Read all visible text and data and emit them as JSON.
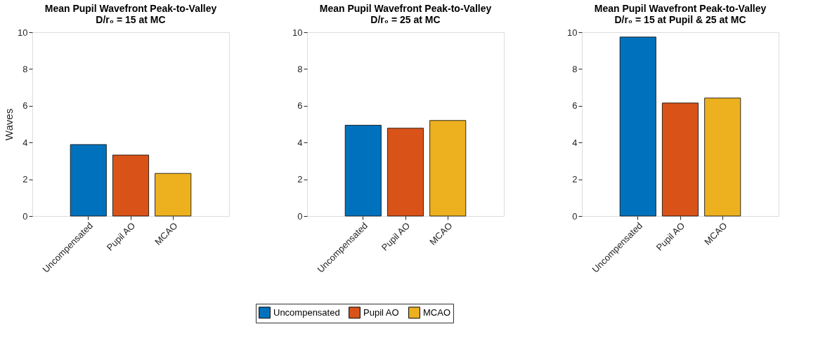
{
  "chart_data": [
    {
      "type": "bar",
      "title": "Mean Pupil Wavefront Peak-to-Valley\nD/r₀ = 15 at MC",
      "ylabel": "Waves",
      "categories": [
        "Uncompensated",
        "Pupil AO",
        "MCAO"
      ],
      "series": [
        {
          "name": "Uncompensated",
          "color": "#0072bd",
          "values": [
            3.89,
            null,
            null
          ]
        },
        {
          "name": "Pupil AO",
          "color": "#d95319",
          "values": [
            null,
            3.32,
            null
          ]
        },
        {
          "name": "MCAO",
          "color": "#edb120",
          "values": [
            null,
            null,
            2.32
          ]
        }
      ],
      "ylim": [
        0,
        10
      ],
      "yticks": [
        0,
        2,
        4,
        6,
        8,
        10
      ],
      "grid": false,
      "legend": "bottom"
    },
    {
      "type": "bar",
      "title": "Mean Pupil Wavefront Peak-to-Valley\nD/r₀ = 25 at MC",
      "categories": [
        "Uncompensated",
        "Pupil AO",
        "MCAO"
      ],
      "series": [
        {
          "name": "Uncompensated",
          "color": "#0072bd",
          "values": [
            4.94,
            null,
            null
          ]
        },
        {
          "name": "Pupil AO",
          "color": "#d95319",
          "values": [
            null,
            4.78,
            null
          ]
        },
        {
          "name": "MCAO",
          "color": "#edb120",
          "values": [
            null,
            null,
            5.2
          ]
        }
      ],
      "ylim": [
        0,
        10
      ],
      "yticks": [
        0,
        2,
        4,
        6,
        8,
        10
      ],
      "grid": false,
      "legend": "bottom"
    },
    {
      "type": "bar",
      "title": "Mean Pupil Wavefront Peak-to-Valley\nD/r₀ = 15 at Pupil & 25 at MC",
      "categories": [
        "Uncompensated",
        "Pupil AO",
        "MCAO"
      ],
      "series": [
        {
          "name": "Uncompensated",
          "color": "#0072bd",
          "values": [
            9.74,
            null,
            null
          ]
        },
        {
          "name": "Pupil AO",
          "color": "#d95319",
          "values": [
            null,
            6.15,
            null
          ]
        },
        {
          "name": "MCAO",
          "color": "#edb120",
          "values": [
            null,
            null,
            6.42
          ]
        }
      ],
      "ylim": [
        0,
        10
      ],
      "yticks": [
        0,
        2,
        4,
        6,
        8,
        10
      ],
      "grid": false,
      "legend": "bottom"
    }
  ]
}
